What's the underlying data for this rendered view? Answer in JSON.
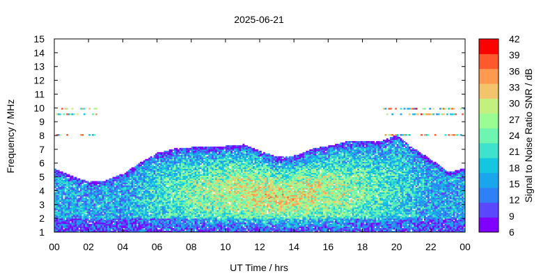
{
  "chart_data": {
    "type": "heatmap",
    "title": "2025-06-21",
    "xlabel": "UT Time / hrs",
    "ylabel": "Frequency / MHz",
    "colorbar_label": "Signal to Noise Ratio SNR / dB",
    "x_ticks": [
      "00",
      "02",
      "04",
      "06",
      "08",
      "10",
      "12",
      "14",
      "16",
      "18",
      "20",
      "22",
      "00"
    ],
    "y_ticks": [
      "1",
      "2",
      "3",
      "4",
      "5",
      "6",
      "7",
      "8",
      "9",
      "10",
      "11",
      "12",
      "13",
      "14",
      "15"
    ],
    "colorbar_ticks": [
      "6",
      "9",
      "12",
      "15",
      "18",
      "21",
      "24",
      "27",
      "30",
      "33",
      "36",
      "39",
      "42"
    ],
    "xlim": [
      0,
      24
    ],
    "ylim": [
      1,
      15
    ],
    "clim": [
      6,
      42
    ],
    "colorscale": [
      "#7f00ff",
      "#5a47ff",
      "#2f80f4",
      "#1aa6ec",
      "#14c6e0",
      "#3fe2cc",
      "#6df5b1",
      "#99fd94",
      "#c3f07f",
      "#f4c46d",
      "#ff9a50",
      "#ff5a2e",
      "#ff0000"
    ],
    "upper_frequency_envelope_mhz": [
      {
        "x": 0.0,
        "y": 5.5
      },
      {
        "x": 1.0,
        "y": 5.0
      },
      {
        "x": 2.0,
        "y": 4.6
      },
      {
        "x": 3.0,
        "y": 4.7
      },
      {
        "x": 4.0,
        "y": 5.2
      },
      {
        "x": 5.0,
        "y": 6.0
      },
      {
        "x": 6.0,
        "y": 6.7
      },
      {
        "x": 7.0,
        "y": 7.0
      },
      {
        "x": 8.0,
        "y": 7.1
      },
      {
        "x": 9.0,
        "y": 7.1
      },
      {
        "x": 10.0,
        "y": 7.2
      },
      {
        "x": 11.0,
        "y": 7.3
      },
      {
        "x": 12.0,
        "y": 6.8
      },
      {
        "x": 13.0,
        "y": 6.4
      },
      {
        "x": 14.0,
        "y": 6.5
      },
      {
        "x": 15.0,
        "y": 7.0
      },
      {
        "x": 16.0,
        "y": 7.2
      },
      {
        "x": 17.0,
        "y": 7.5
      },
      {
        "x": 18.0,
        "y": 7.5
      },
      {
        "x": 19.0,
        "y": 7.5
      },
      {
        "x": 20.0,
        "y": 8.0
      },
      {
        "x": 21.0,
        "y": 7.0
      },
      {
        "x": 22.0,
        "y": 6.2
      },
      {
        "x": 23.0,
        "y": 5.3
      },
      {
        "x": 24.0,
        "y": 5.6
      }
    ]
  }
}
